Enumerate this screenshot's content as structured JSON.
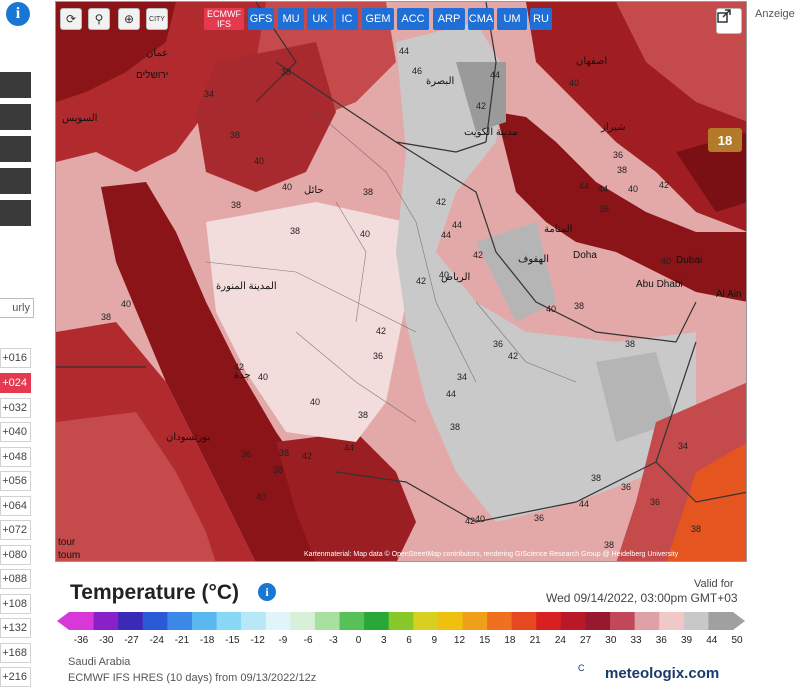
{
  "left_panel": {
    "hourly_label": "urly",
    "steps": [
      "+016",
      "+024",
      "+032",
      "+040",
      "+048",
      "+056",
      "+064",
      "+072",
      "+080",
      "+088",
      "+108",
      "+132",
      "+168",
      "+216"
    ],
    "active_step": "+024"
  },
  "map": {
    "tools": {
      "city_label": "CITY"
    },
    "models": [
      "ECMWF IFS",
      "GFS",
      "MU",
      "UK",
      "IC",
      "GEM",
      "ACC",
      "ARP",
      "CMA",
      "UM",
      "RU"
    ],
    "active_model": "ECMWF IFS",
    "badge": "18",
    "attribution": "Kartenmaterial: Map data © OpenStreetMap contributors, rendering GIScience Research Group @ Heidelberg University",
    "city_labels": {
      "doha": "Doha",
      "dubai": "Dubai",
      "abudhabi": "Abu Dhabi",
      "alain": "Al Ain"
    },
    "arabic_labels": {
      "riyadh": "الرياض",
      "kuwait": "مدينة الكويت",
      "manama": "المنامة",
      "medina": "المدينة المنورة",
      "jeddah": "جدة",
      "portsudan": "بورتسودان",
      "hail": "حائل",
      "hofuf": "الهفوف",
      "basra": "البصرة",
      "amman": "عمان",
      "jerusalem": "ירושלים",
      "suez": "السويس",
      "shiraz": "شیراز",
      "isfahan": "اصفهان"
    },
    "value_labels": [
      "38",
      "34",
      "38",
      "40",
      "38",
      "38",
      "40",
      "42",
      "44",
      "42",
      "40",
      "38",
      "40",
      "42",
      "44",
      "46",
      "42",
      "44",
      "40",
      "36",
      "38",
      "38",
      "40",
      "42",
      "44",
      "40",
      "44",
      "38",
      "40",
      "38",
      "36",
      "34",
      "36",
      "38",
      "40",
      "44",
      "42",
      "38",
      "40",
      "38",
      "36",
      "40",
      "42",
      "42",
      "44",
      "44",
      "42",
      "38",
      "44",
      "38",
      "36",
      "42",
      "40",
      "38",
      "36",
      "34",
      "36",
      "38",
      "36",
      "38",
      "40"
    ],
    "extra_labels": {
      "tour": "tour",
      "toum": "toum"
    },
    "colors": {
      "hot": "#8a1418",
      "warm": "#c44a4c",
      "mild": "#e2a9a8",
      "light": "#f2dcdc",
      "grey": "#c9c9c9",
      "darkgrey": "#9a9a9a",
      "orange": "#e45520"
    }
  },
  "ad_label": "Anzeige",
  "legend": {
    "title": "Temperature (°C)",
    "valid_for": "Valid for",
    "valid_date": "Wed 09/14/2022, 03:00pm GMT+03",
    "ticks": [
      "-36",
      "-30",
      "-27",
      "-24",
      "-21",
      "-18",
      "-15",
      "-12",
      "-9",
      "-6",
      "-3",
      "0",
      "3",
      "6",
      "9",
      "12",
      "15",
      "18",
      "21",
      "24",
      "27",
      "30",
      "33",
      "36",
      "39",
      "44",
      "50"
    ],
    "colors": [
      "#d838d8",
      "#8a20c8",
      "#3a2ab8",
      "#2a5ad8",
      "#3a88e8",
      "#5ab8f0",
      "#88d8f8",
      "#b8e8f8",
      "#e0f4fa",
      "#d8f0d8",
      "#a8e0a0",
      "#58c058",
      "#28a838",
      "#88c828",
      "#d8d020",
      "#f0c010",
      "#f0a018",
      "#f07020",
      "#e84820",
      "#d82020",
      "#b81828",
      "#981830",
      "#c04858",
      "#e0a0a8",
      "#f0c8c8",
      "#c8c8c8",
      "#a0a0a0"
    ]
  },
  "footer": {
    "region": "Saudi Arabia",
    "model_run": "ECMWF IFS HRES (10 days) from 09/13/2022/12z",
    "brand": "meteologix.com",
    "brand_mark": "C"
  }
}
